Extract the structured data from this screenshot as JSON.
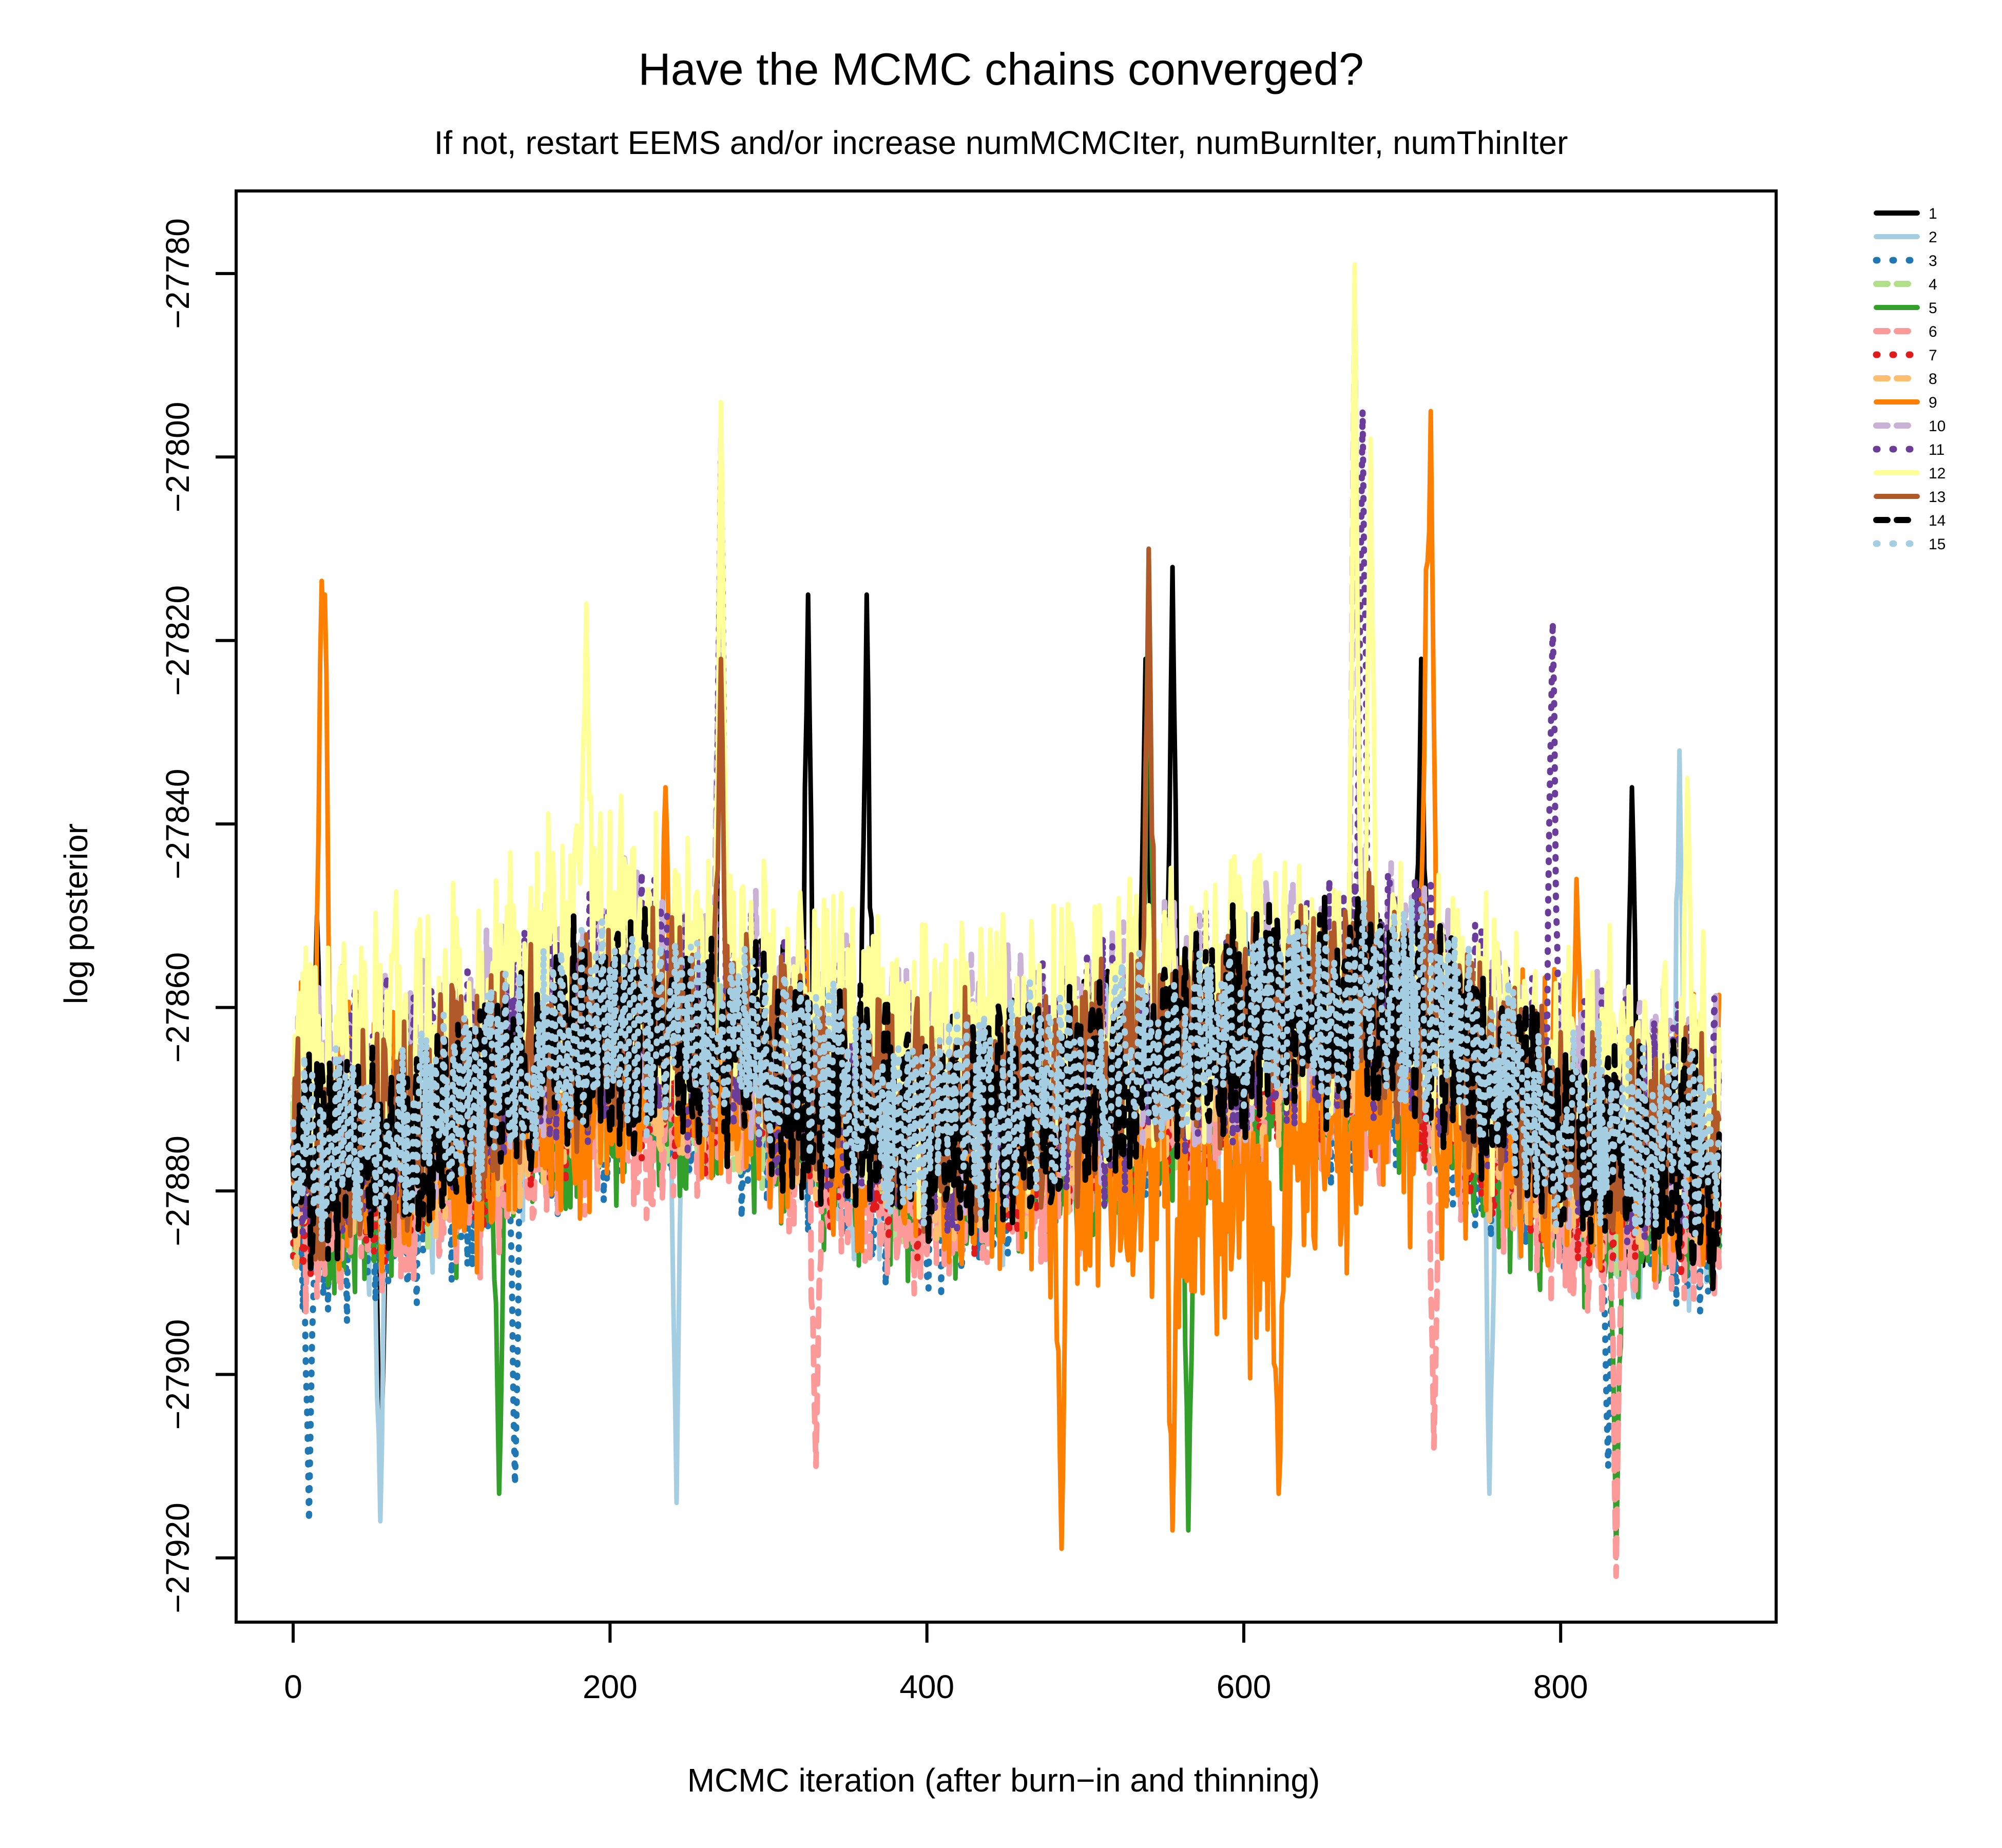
{
  "chart_data": {
    "type": "line",
    "title": "Have the MCMC chains converged?",
    "subtitle": "If not, restart EEMS and/or increase numMCMCIter, numBurnIter, numThinIter",
    "xlabel": "MCMC iteration  (after burn−in and thinning)",
    "ylabel": "log posterior",
    "xlim": [
      -36,
      936
    ],
    "ylim": [
      -27927,
      -27771
    ],
    "x_ticks": [
      0,
      200,
      400,
      600,
      800
    ],
    "x_tick_labels": [
      "0",
      "200",
      "400",
      "600",
      "800"
    ],
    "y_ticks": [
      -27780,
      -27800,
      -27820,
      -27840,
      -27860,
      -27880,
      -27900,
      -27920
    ],
    "y_tick_labels": [
      "−27780",
      "−27800",
      "−27820",
      "−27840",
      "−27860",
      "−27880",
      "−27900",
      "−27920"
    ],
    "n_iterations": 900,
    "grid": false,
    "legend_position": "right-outside-top",
    "series": [
      {
        "name": "1",
        "color": "#000000",
        "dash": "solid",
        "level": [
          [
            0,
            -27878
          ],
          [
            100,
            -27872
          ],
          [
            200,
            -27862
          ],
          [
            300,
            -27866
          ],
          [
            400,
            -27874
          ],
          [
            500,
            -27869
          ],
          [
            600,
            -27862
          ],
          [
            700,
            -27860
          ],
          [
            800,
            -27874
          ],
          [
            900,
            -27877
          ]
        ],
        "amp": 11,
        "spikes": [
          [
            15,
            -27850
          ],
          [
            55,
            -27912
          ],
          [
            270,
            -27822
          ],
          [
            325,
            -27815
          ],
          [
            362,
            -27815
          ],
          [
            538,
            -27822
          ],
          [
            555,
            -27812
          ],
          [
            712,
            -27822
          ],
          [
            845,
            -27836
          ]
        ]
      },
      {
        "name": "2",
        "color": "#A6CEE3",
        "dash": "solid",
        "level": [
          [
            0,
            -27880
          ],
          [
            100,
            -27874
          ],
          [
            200,
            -27864
          ],
          [
            300,
            -27868
          ],
          [
            400,
            -27876
          ],
          [
            500,
            -27871
          ],
          [
            600,
            -27864
          ],
          [
            700,
            -27862
          ],
          [
            800,
            -27876
          ],
          [
            900,
            -27879
          ]
        ],
        "amp": 12,
        "spikes": [
          [
            55,
            -27916
          ],
          [
            242,
            -27914
          ],
          [
            755,
            -27913
          ],
          [
            875,
            -27832
          ]
        ]
      },
      {
        "name": "3",
        "color": "#1F78B4",
        "dash": "dotted",
        "level": [
          [
            0,
            -27882
          ],
          [
            100,
            -27876
          ],
          [
            200,
            -27866
          ],
          [
            300,
            -27869
          ],
          [
            400,
            -27878
          ],
          [
            500,
            -27872
          ],
          [
            600,
            -27865
          ],
          [
            700,
            -27864
          ],
          [
            800,
            -27878
          ],
          [
            900,
            -27880
          ]
        ],
        "amp": 12,
        "spikes": [
          [
            10,
            -27916
          ],
          [
            140,
            -27912
          ],
          [
            830,
            -27910
          ]
        ]
      },
      {
        "name": "4",
        "color": "#B2DF8A",
        "dash": "dashed",
        "level": [
          [
            0,
            -27879
          ],
          [
            100,
            -27873
          ],
          [
            200,
            -27866
          ],
          [
            300,
            -27868
          ],
          [
            400,
            -27876
          ],
          [
            500,
            -27870
          ],
          [
            600,
            -27865
          ],
          [
            700,
            -27862
          ],
          [
            800,
            -27876
          ],
          [
            900,
            -27878
          ]
        ],
        "amp": 10,
        "spikes": []
      },
      {
        "name": "5",
        "color": "#33A02C",
        "dash": "solid",
        "level": [
          [
            0,
            -27881
          ],
          [
            100,
            -27876
          ],
          [
            200,
            -27868
          ],
          [
            300,
            -27870
          ],
          [
            400,
            -27879
          ],
          [
            500,
            -27873
          ],
          [
            600,
            -27868
          ],
          [
            700,
            -27866
          ],
          [
            800,
            -27880
          ],
          [
            900,
            -27880
          ]
        ],
        "amp": 11,
        "spikes": [
          [
            130,
            -27913
          ],
          [
            540,
            -27810
          ],
          [
            565,
            -27917
          ],
          [
            835,
            -27920
          ]
        ]
      },
      {
        "name": "6",
        "color": "#FB9A99",
        "dash": "dashed",
        "level": [
          [
            0,
            -27882
          ],
          [
            100,
            -27877
          ],
          [
            200,
            -27869
          ],
          [
            300,
            -27871
          ],
          [
            400,
            -27880
          ],
          [
            500,
            -27874
          ],
          [
            600,
            -27869
          ],
          [
            700,
            -27867
          ],
          [
            800,
            -27881
          ],
          [
            900,
            -27881
          ]
        ],
        "amp": 11,
        "spikes": [
          [
            330,
            -27910
          ],
          [
            720,
            -27908
          ],
          [
            835,
            -27922
          ]
        ]
      },
      {
        "name": "7",
        "color": "#E31A1C",
        "dash": "dotted",
        "level": [
          [
            0,
            -27879
          ],
          [
            100,
            -27874
          ],
          [
            200,
            -27866
          ],
          [
            300,
            -27868
          ],
          [
            400,
            -27877
          ],
          [
            500,
            -27871
          ],
          [
            600,
            -27866
          ],
          [
            700,
            -27864
          ],
          [
            800,
            -27878
          ],
          [
            900,
            -27878
          ]
        ],
        "amp": 10,
        "spikes": []
      },
      {
        "name": "8",
        "color": "#FDBF6F",
        "dash": "dashed",
        "level": [
          [
            0,
            -27878
          ],
          [
            100,
            -27873
          ],
          [
            200,
            -27865
          ],
          [
            300,
            -27867
          ],
          [
            400,
            -27876
          ],
          [
            500,
            -27870
          ],
          [
            600,
            -27865
          ],
          [
            700,
            -27863
          ],
          [
            800,
            -27877
          ],
          [
            900,
            -27877
          ]
        ],
        "amp": 10,
        "spikes": []
      },
      {
        "name": "9",
        "color": "#FF7F00",
        "dash": "solid",
        "level": [
          [
            0,
            -27872
          ],
          [
            100,
            -27874
          ],
          [
            200,
            -27865
          ],
          [
            300,
            -27868
          ],
          [
            400,
            -27872
          ],
          [
            500,
            -27874
          ],
          [
            600,
            -27885
          ],
          [
            700,
            -27870
          ],
          [
            800,
            -27872
          ],
          [
            900,
            -27875
          ]
        ],
        "amp": 14,
        "spikes": [
          [
            18,
            -27812
          ],
          [
            20,
            -27815
          ],
          [
            235,
            -27836
          ],
          [
            485,
            -27919
          ],
          [
            555,
            -27917
          ],
          [
            622,
            -27913
          ],
          [
            715,
            -27818
          ],
          [
            718,
            -27795
          ],
          [
            810,
            -27846
          ]
        ]
      },
      {
        "name": "10",
        "color": "#CAB2D6",
        "dash": "dashed",
        "level": [
          [
            0,
            -27872
          ],
          [
            100,
            -27868
          ],
          [
            200,
            -27858
          ],
          [
            300,
            -27862
          ],
          [
            400,
            -27870
          ],
          [
            500,
            -27866
          ],
          [
            600,
            -27860
          ],
          [
            700,
            -27856
          ],
          [
            800,
            -27870
          ],
          [
            900,
            -27872
          ]
        ],
        "amp": 12,
        "spikes": [
          [
            270,
            -27798
          ],
          [
            670,
            -27785
          ]
        ]
      },
      {
        "name": "11",
        "color": "#6A3D9A",
        "dash": "dotted",
        "level": [
          [
            0,
            -27873
          ],
          [
            100,
            -27869
          ],
          [
            200,
            -27859
          ],
          [
            300,
            -27863
          ],
          [
            400,
            -27871
          ],
          [
            500,
            -27867
          ],
          [
            600,
            -27861
          ],
          [
            700,
            -27857
          ],
          [
            800,
            -27871
          ],
          [
            900,
            -27873
          ]
        ],
        "amp": 12,
        "spikes": [
          [
            270,
            -27800
          ],
          [
            675,
            -27795
          ],
          [
            795,
            -27818
          ]
        ]
      },
      {
        "name": "12",
        "color": "#FFFF99",
        "dash": "solid",
        "level": [
          [
            0,
            -27868
          ],
          [
            100,
            -27862
          ],
          [
            200,
            -27852
          ],
          [
            300,
            -27858
          ],
          [
            400,
            -27868
          ],
          [
            500,
            -27862
          ],
          [
            600,
            -27858
          ],
          [
            700,
            -27856
          ],
          [
            800,
            -27868
          ],
          [
            900,
            -27868
          ]
        ],
        "amp": 14,
        "spikes": [
          [
            185,
            -27816
          ],
          [
            270,
            -27794
          ],
          [
            670,
            -27779
          ],
          [
            680,
            -27798
          ],
          [
            880,
            -27835
          ]
        ]
      },
      {
        "name": "13",
        "color": "#B15928",
        "dash": "solid",
        "level": [
          [
            0,
            -27877
          ],
          [
            100,
            -27871
          ],
          [
            200,
            -27861
          ],
          [
            300,
            -27865
          ],
          [
            400,
            -27873
          ],
          [
            500,
            -27868
          ],
          [
            600,
            -27861
          ],
          [
            700,
            -27859
          ],
          [
            800,
            -27873
          ],
          [
            900,
            -27876
          ]
        ],
        "amp": 11,
        "spikes": [
          [
            540,
            -27810
          ],
          [
            270,
            -27822
          ]
        ]
      },
      {
        "name": "14",
        "color": "#000000",
        "dash": "dashed",
        "level": [
          [
            0,
            -27878
          ],
          [
            100,
            -27872
          ],
          [
            200,
            -27862
          ],
          [
            300,
            -27866
          ],
          [
            400,
            -27874
          ],
          [
            500,
            -27869
          ],
          [
            600,
            -27862
          ],
          [
            700,
            -27860
          ],
          [
            800,
            -27874
          ],
          [
            900,
            -27877
          ]
        ],
        "amp": 11,
        "spikes": []
      },
      {
        "name": "15",
        "color": "#A6CEE3",
        "dash": "dotted",
        "level": [
          [
            0,
            -27877
          ],
          [
            100,
            -27871
          ],
          [
            200,
            -27861
          ],
          [
            300,
            -27865
          ],
          [
            400,
            -27873
          ],
          [
            500,
            -27868
          ],
          [
            600,
            -27861
          ],
          [
            700,
            -27859
          ],
          [
            800,
            -27873
          ],
          [
            900,
            -27876
          ]
        ],
        "amp": 10,
        "spikes": []
      }
    ]
  }
}
